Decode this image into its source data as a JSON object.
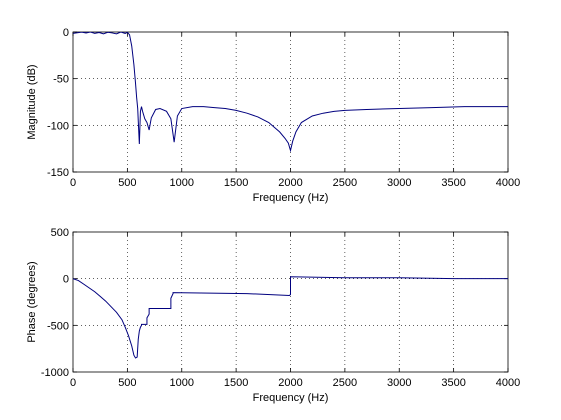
{
  "chart_data": [
    {
      "type": "line",
      "xlabel": "Frequency (Hz)",
      "ylabel": "Magnitude (dB)",
      "xlim": [
        0,
        4000
      ],
      "ylim": [
        -150,
        0
      ],
      "xticks": [
        "0",
        "500",
        "1000",
        "1500",
        "2000",
        "2500",
        "3000",
        "3500",
        "4000"
      ],
      "yticks": [
        "-150",
        "-100",
        "-50",
        "0"
      ],
      "grid": true,
      "color": "#00007f",
      "series": [
        {
          "x": [
            0,
            40,
            80,
            120,
            160,
            200,
            240,
            280,
            320,
            360,
            400,
            440,
            480,
            500,
            520,
            540,
            560,
            575,
            585,
            595,
            600,
            610,
            620,
            630,
            640,
            660,
            680,
            700,
            720,
            760,
            800,
            860,
            900,
            930,
            960,
            1000,
            1100,
            1200,
            1300,
            1400,
            1500,
            1600,
            1700,
            1800,
            1900,
            1950,
            1980,
            2000,
            2020,
            2050,
            2100,
            2200,
            2300,
            2400,
            2500,
            2700,
            3000,
            3300,
            3600,
            4000
          ],
          "y": [
            -1.5,
            -0.8,
            -0.2,
            -1.0,
            0,
            -1.5,
            -0.5,
            -2.0,
            -0.3,
            -1.0,
            -2.0,
            0,
            -1.5,
            -0.3,
            -3,
            -15,
            -35,
            -55,
            -70,
            -82,
            -95,
            -120,
            -85,
            -80,
            -85,
            -93,
            -97,
            -105,
            -92,
            -83,
            -82,
            -85,
            -93,
            -118,
            -90,
            -82,
            -80,
            -80,
            -81,
            -82,
            -84,
            -87,
            -91,
            -97,
            -107,
            -114,
            -119,
            -127,
            -117,
            -107,
            -97,
            -90,
            -87,
            -85,
            -84,
            -83,
            -82,
            -81,
            -80,
            -80
          ]
        }
      ]
    },
    {
      "type": "line",
      "xlabel": "Frequency (Hz)",
      "ylabel": "Phase (degrees)",
      "xlim": [
        0,
        4000
      ],
      "ylim": [
        -1000,
        500
      ],
      "xticks": [
        "0",
        "500",
        "1000",
        "1500",
        "2000",
        "2500",
        "3000",
        "3500",
        "4000"
      ],
      "yticks": [
        "-1000",
        "-500",
        "0",
        "500"
      ],
      "grid": true,
      "color": "#00007f",
      "series": [
        {
          "x": [
            0,
            50,
            100,
            150,
            200,
            250,
            300,
            350,
            400,
            450,
            480,
            510,
            540,
            560,
            575,
            590,
            600,
            610,
            620,
            630,
            630,
            680,
            680,
            700,
            700,
            900,
            900,
            920,
            920,
            1600,
            1990,
            2000,
            2000,
            2500,
            3000,
            3500,
            4000
          ],
          "y": [
            0,
            -20,
            -60,
            -100,
            -140,
            -190,
            -240,
            -300,
            -360,
            -440,
            -520,
            -610,
            -720,
            -820,
            -850,
            -840,
            -650,
            -560,
            -520,
            -500,
            -490,
            -490,
            -420,
            -380,
            -320,
            -320,
            -210,
            -160,
            -150,
            -160,
            -180,
            -170,
            20,
            10,
            10,
            0,
            0
          ]
        }
      ]
    }
  ]
}
